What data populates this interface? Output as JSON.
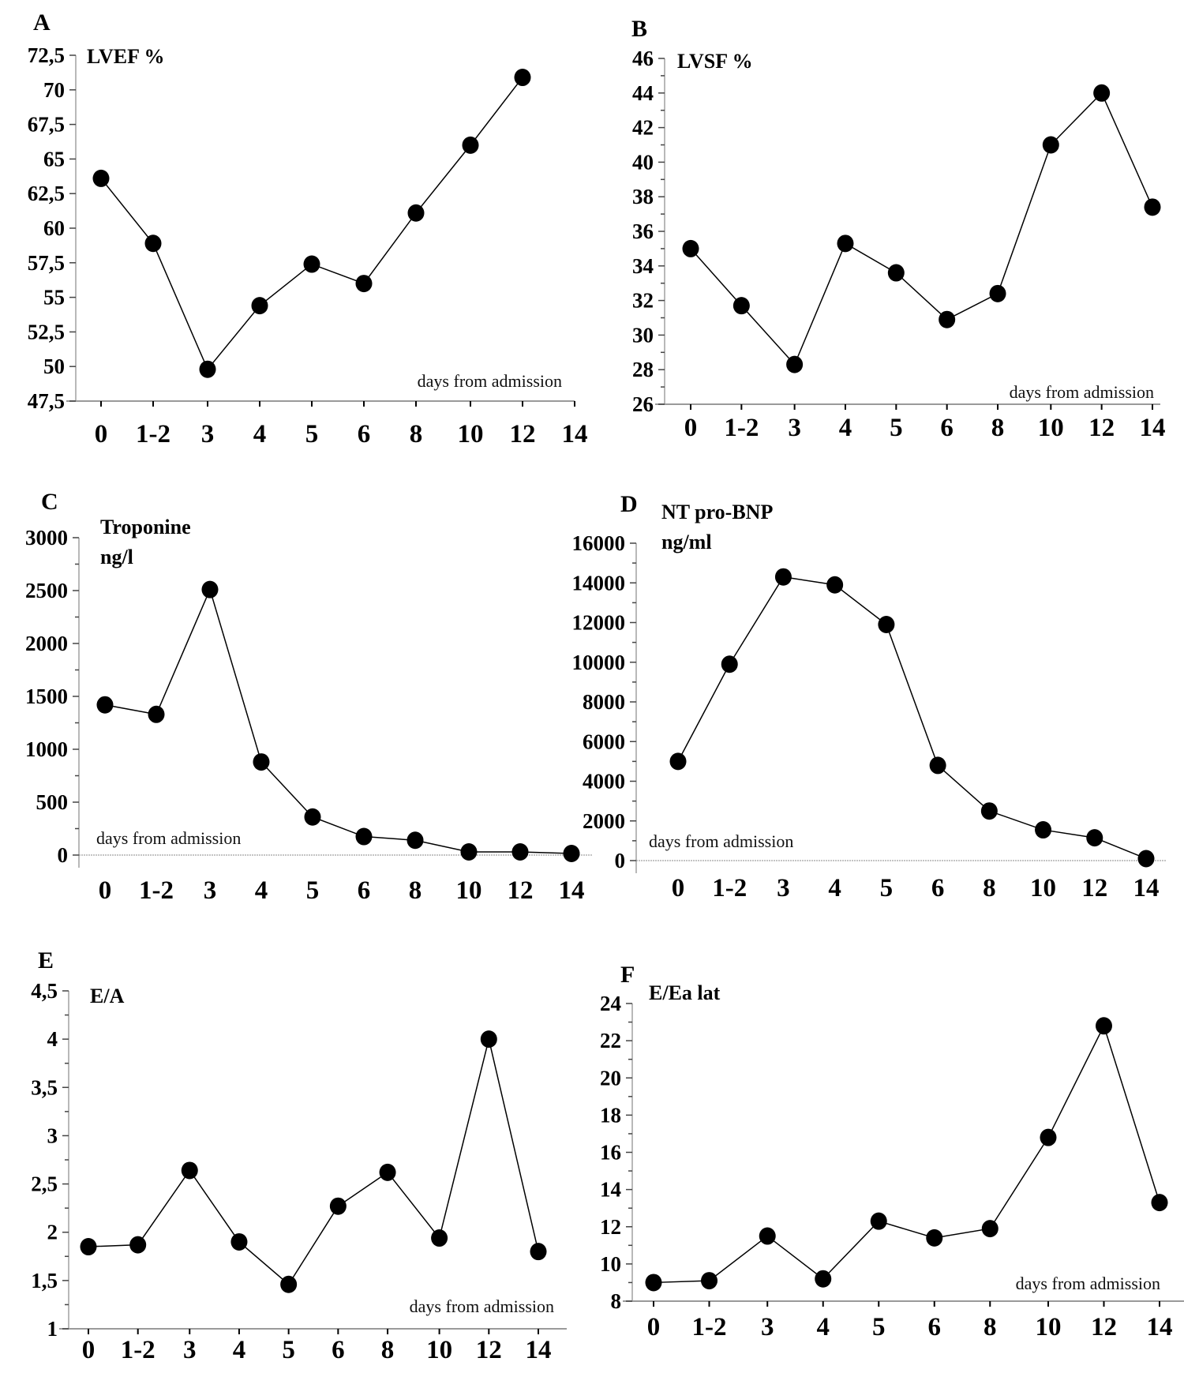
{
  "figure": {
    "x_axis_title": "days from admission",
    "x_categories": [
      "0",
      "1-2",
      "3",
      "4",
      "5",
      "6",
      "8",
      "10",
      "12",
      "14"
    ]
  },
  "chart_data": [
    {
      "panel": "A",
      "type": "line",
      "title": "LVEF %",
      "xlabel": "days from admission",
      "ylabel": "LVEF %",
      "categories": [
        "0",
        "1-2",
        "3",
        "4",
        "5",
        "6",
        "8",
        "10",
        "12",
        "14"
      ],
      "series": [
        {
          "name": "LVEF %",
          "values": [
            63.6,
            58.9,
            49.8,
            54.4,
            57.4,
            56.0,
            61.1,
            66.0,
            70.9,
            null
          ]
        }
      ],
      "ylim": [
        47.5,
        72.5
      ],
      "yticks": [
        47.5,
        50,
        52.5,
        55,
        57.5,
        60,
        62.5,
        65,
        67.5,
        70,
        72.5
      ],
      "ytick_labels": [
        "47,5",
        "50",
        "52,5",
        "55",
        "57,5",
        "60",
        "62,5",
        "65",
        "67,5",
        "70",
        "72,5"
      ],
      "minor_ticks": false,
      "grid": false,
      "zero_line": false,
      "xlabel_position": "bottom-right"
    },
    {
      "panel": "B",
      "type": "line",
      "title": "LVSF %",
      "xlabel": "days from admission",
      "ylabel": "LVSF %",
      "categories": [
        "0",
        "1-2",
        "3",
        "4",
        "5",
        "6",
        "8",
        "10",
        "12",
        "14"
      ],
      "series": [
        {
          "name": "LVSF %",
          "values": [
            35.0,
            31.7,
            28.3,
            35.3,
            33.6,
            30.9,
            32.4,
            41.0,
            44.0,
            37.4
          ]
        }
      ],
      "ylim": [
        26,
        46
      ],
      "yticks": [
        26,
        28,
        30,
        32,
        34,
        36,
        38,
        40,
        42,
        44,
        46
      ],
      "ytick_labels": [
        "26",
        "28",
        "30",
        "32",
        "34",
        "36",
        "38",
        "40",
        "42",
        "44",
        "46"
      ],
      "minor_ticks": true,
      "grid": false,
      "zero_line": false,
      "xlabel_position": "bottom-right"
    },
    {
      "panel": "C",
      "type": "line",
      "title": "Troponine ng/l",
      "title_lines": [
        "Troponine",
        "ng/l"
      ],
      "xlabel": "days from admission",
      "ylabel": "Troponine ng/l",
      "categories": [
        "0",
        "1-2",
        "3",
        "4",
        "5",
        "6",
        "8",
        "10",
        "12",
        "14"
      ],
      "series": [
        {
          "name": "Troponine",
          "values": [
            1420,
            1330,
            2510,
            880,
            360,
            175,
            140,
            30,
            30,
            15
          ]
        }
      ],
      "ylim": [
        0,
        3000
      ],
      "yticks": [
        0,
        500,
        1000,
        1500,
        2000,
        2500,
        3000
      ],
      "ytick_labels": [
        "0",
        "500",
        "1000",
        "1500",
        "2000",
        "2500",
        "3000"
      ],
      "minor_ticks": true,
      "grid": false,
      "zero_line": true,
      "xlabel_position": "bottom-left"
    },
    {
      "panel": "D",
      "type": "line",
      "title": "NT pro-BNP ng/ml",
      "title_lines": [
        "NT pro-BNP",
        "ng/ml"
      ],
      "xlabel": "days from admission",
      "ylabel": "NT pro-BNP ng/ml",
      "categories": [
        "0",
        "1-2",
        "3",
        "4",
        "5",
        "6",
        "8",
        "10",
        "12",
        "14"
      ],
      "series": [
        {
          "name": "NT pro-BNP",
          "values": [
            5000,
            9900,
            14300,
            13900,
            11900,
            4800,
            2500,
            1550,
            1150,
            100
          ]
        }
      ],
      "ylim": [
        0,
        16000
      ],
      "yticks": [
        0,
        2000,
        4000,
        6000,
        8000,
        10000,
        12000,
        14000,
        16000
      ],
      "ytick_labels": [
        "0",
        "2000",
        "4000",
        "6000",
        "8000",
        "10000",
        "12000",
        "14000",
        "16000"
      ],
      "minor_ticks": true,
      "grid": false,
      "zero_line": true,
      "xlabel_position": "bottom-left"
    },
    {
      "panel": "E",
      "type": "line",
      "title": "E/A",
      "xlabel": "days from admission",
      "ylabel": "E/A",
      "categories": [
        "0",
        "1-2",
        "3",
        "4",
        "5",
        "6",
        "8",
        "10",
        "12",
        "14"
      ],
      "series": [
        {
          "name": "E/A",
          "values": [
            1.85,
            1.87,
            2.64,
            1.9,
            1.46,
            2.27,
            2.62,
            1.94,
            4.0,
            1.8
          ]
        }
      ],
      "ylim": [
        1,
        4.5
      ],
      "yticks": [
        1,
        1.5,
        2,
        2.5,
        3,
        3.5,
        4,
        4.5
      ],
      "ytick_labels": [
        "1",
        "1,5",
        "2",
        "2,5",
        "3",
        "3,5",
        "4",
        "4,5"
      ],
      "minor_ticks": true,
      "grid": false,
      "zero_line": false,
      "xlabel_position": "bottom-right"
    },
    {
      "panel": "F",
      "type": "line",
      "title": "E/Ea lat",
      "xlabel": "days from admission",
      "ylabel": "E/Ea lat",
      "categories": [
        "0",
        "1-2",
        "3",
        "4",
        "5",
        "6",
        "8",
        "10",
        "12",
        "14"
      ],
      "series": [
        {
          "name": "E/Ea lat",
          "values": [
            9.0,
            9.1,
            11.5,
            9.2,
            12.3,
            11.4,
            11.9,
            16.8,
            22.8,
            13.3
          ]
        }
      ],
      "ylim": [
        8,
        24
      ],
      "yticks": [
        8,
        10,
        12,
        14,
        16,
        18,
        20,
        22,
        24
      ],
      "ytick_labels": [
        "8",
        "10",
        "12",
        "14",
        "16",
        "18",
        "20",
        "22",
        "24"
      ],
      "minor_ticks": true,
      "grid": false,
      "zero_line": false,
      "xlabel_position": "bottom-right"
    }
  ]
}
